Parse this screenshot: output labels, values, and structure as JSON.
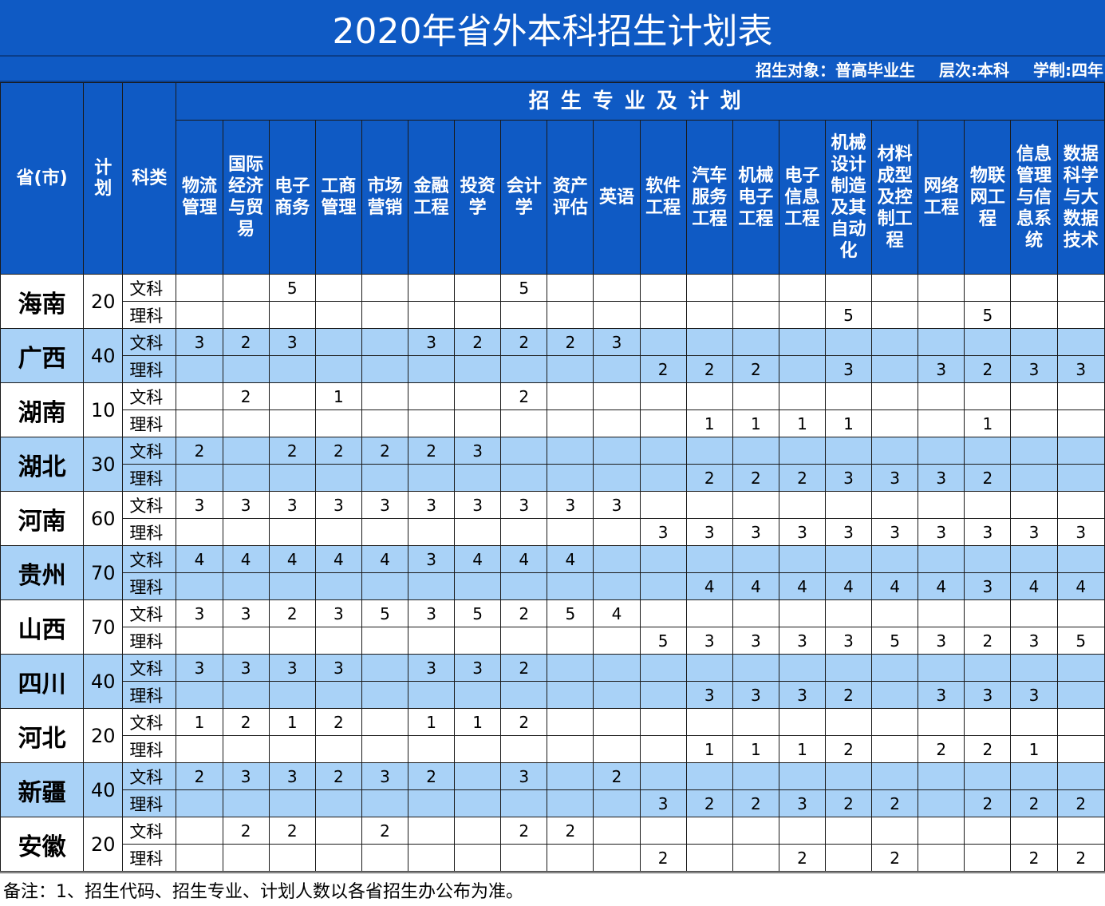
{
  "title": "2020年省外本科招生计划表",
  "info": {
    "target": "招生对象：普高毕业生",
    "level": "层次:本科",
    "duration": "学制:四年"
  },
  "headers": {
    "province": "省(市)",
    "plan": "计\n划",
    "type": "科类",
    "plan_group": "招生专业及计划",
    "majors": [
      "物流\n管理",
      "国际\n经济\n与贸\n易",
      "电子\n商务",
      "工商\n管理",
      "市场\n营销",
      "金融\n工程",
      "投资\n学",
      "会计\n学",
      "资产\n评估",
      "英语",
      "软件\n工程",
      "汽车\n服务\n工程",
      "机械\n电子\n工程",
      "电子\n信息\n工程",
      "机械\n设计\n制造\n及其\n自动\n化",
      "材料\n成型\n及控\n制工\n程",
      "网络\n工程",
      "物联\n网工\n程",
      "信息\n管理\n与信\n息系\n统",
      "数据\n科学\n与大\n数据\n技术"
    ]
  },
  "rows": [
    {
      "province": "海南",
      "plan": "20",
      "wen": {
        "type": "文科",
        "values": [
          "",
          "",
          "5",
          "",
          "",
          "",
          "",
          "5",
          "",
          "",
          "",
          "",
          "",
          "",
          "",
          "",
          "",
          "",
          "",
          ""
        ]
      },
      "li": {
        "type": "理科",
        "values": [
          "",
          "",
          "",
          "",
          "",
          "",
          "",
          "",
          "",
          "",
          "",
          "",
          "",
          "",
          "5",
          "",
          "",
          "5",
          "",
          ""
        ]
      }
    },
    {
      "province": "广西",
      "plan": "40",
      "wen": {
        "type": "文科",
        "values": [
          "3",
          "2",
          "3",
          "",
          "",
          "3",
          "2",
          "2",
          "2",
          "3",
          "",
          "",
          "",
          "",
          "",
          "",
          "",
          "",
          "",
          ""
        ]
      },
      "li": {
        "type": "理科",
        "values": [
          "",
          "",
          "",
          "",
          "",
          "",
          "",
          "",
          "",
          "",
          "2",
          "2",
          "2",
          "",
          "3",
          "",
          "3",
          "2",
          "3",
          "3"
        ]
      }
    },
    {
      "province": "湖南",
      "plan": "10",
      "wen": {
        "type": "文科",
        "values": [
          "",
          "2",
          "",
          "1",
          "",
          "",
          "",
          "2",
          "",
          "",
          "",
          "",
          "",
          "",
          "",
          "",
          "",
          "",
          "",
          ""
        ]
      },
      "li": {
        "type": "理科",
        "values": [
          "",
          "",
          "",
          "",
          "",
          "",
          "",
          "",
          "",
          "",
          "",
          "1",
          "1",
          "1",
          "1",
          "",
          "",
          "1",
          "",
          ""
        ]
      }
    },
    {
      "province": "湖北",
      "plan": "30",
      "wen": {
        "type": "文科",
        "values": [
          "2",
          "",
          "2",
          "2",
          "2",
          "2",
          "3",
          "",
          "",
          "",
          "",
          "",
          "",
          "",
          "",
          "",
          "",
          "",
          "",
          ""
        ]
      },
      "li": {
        "type": "理科",
        "values": [
          "",
          "",
          "",
          "",
          "",
          "",
          "",
          "",
          "",
          "",
          "",
          "2",
          "2",
          "2",
          "3",
          "3",
          "3",
          "2",
          "",
          ""
        ]
      }
    },
    {
      "province": "河南",
      "plan": "60",
      "wen": {
        "type": "文科",
        "values": [
          "3",
          "3",
          "3",
          "3",
          "3",
          "3",
          "3",
          "3",
          "3",
          "3",
          "",
          "",
          "",
          "",
          "",
          "",
          "",
          "",
          "",
          ""
        ]
      },
      "li": {
        "type": "理科",
        "values": [
          "",
          "",
          "",
          "",
          "",
          "",
          "",
          "",
          "",
          "",
          "3",
          "3",
          "3",
          "3",
          "3",
          "3",
          "3",
          "3",
          "3",
          "3"
        ]
      }
    },
    {
      "province": "贵州",
      "plan": "70",
      "wen": {
        "type": "文科",
        "values": [
          "4",
          "4",
          "4",
          "4",
          "4",
          "3",
          "4",
          "4",
          "4",
          "",
          "",
          "",
          "",
          "",
          "",
          "",
          "",
          "",
          "",
          ""
        ]
      },
      "li": {
        "type": "理科",
        "values": [
          "",
          "",
          "",
          "",
          "",
          "",
          "",
          "",
          "",
          "",
          "",
          "4",
          "4",
          "4",
          "4",
          "4",
          "4",
          "3",
          "4",
          "4"
        ]
      }
    },
    {
      "province": "山西",
      "plan": "70",
      "wen": {
        "type": "文科",
        "values": [
          "3",
          "3",
          "2",
          "3",
          "5",
          "3",
          "5",
          "2",
          "5",
          "4",
          "",
          "",
          "",
          "",
          "",
          "",
          "",
          "",
          "",
          ""
        ]
      },
      "li": {
        "type": "理科",
        "values": [
          "",
          "",
          "",
          "",
          "",
          "",
          "",
          "",
          "",
          "",
          "5",
          "3",
          "3",
          "3",
          "3",
          "5",
          "3",
          "2",
          "3",
          "5"
        ]
      }
    },
    {
      "province": "四川",
      "plan": "40",
      "wen": {
        "type": "文科",
        "values": [
          "3",
          "3",
          "3",
          "3",
          "",
          "3",
          "3",
          "2",
          "",
          "",
          "",
          "",
          "",
          "",
          "",
          "",
          "",
          "",
          "",
          ""
        ]
      },
      "li": {
        "type": "理科",
        "values": [
          "",
          "",
          "",
          "",
          "",
          "",
          "",
          "",
          "",
          "",
          "",
          "3",
          "3",
          "3",
          "2",
          "",
          "3",
          "3",
          "3",
          ""
        ]
      }
    },
    {
      "province": "河北",
      "plan": "20",
      "wen": {
        "type": "文科",
        "values": [
          "1",
          "2",
          "1",
          "2",
          "",
          "1",
          "1",
          "2",
          "",
          "",
          "",
          "",
          "",
          "",
          "",
          "",
          "",
          "",
          "",
          ""
        ]
      },
      "li": {
        "type": "理科",
        "values": [
          "",
          "",
          "",
          "",
          "",
          "",
          "",
          "",
          "",
          "",
          "",
          "1",
          "1",
          "1",
          "2",
          "",
          "2",
          "2",
          "1",
          ""
        ]
      }
    },
    {
      "province": "新疆",
      "plan": "40",
      "wen": {
        "type": "文科",
        "values": [
          "2",
          "3",
          "3",
          "2",
          "3",
          "2",
          "",
          "3",
          "",
          "2",
          "",
          "",
          "",
          "",
          "",
          "",
          "",
          "",
          "",
          ""
        ]
      },
      "li": {
        "type": "理科",
        "values": [
          "",
          "",
          "",
          "",
          "",
          "",
          "",
          "",
          "",
          "",
          "3",
          "2",
          "2",
          "3",
          "2",
          "2",
          "",
          "2",
          "2",
          "2"
        ]
      }
    },
    {
      "province": "安徽",
      "plan": "20",
      "wen": {
        "type": "文科",
        "values": [
          "",
          "2",
          "2",
          "",
          "2",
          "",
          "",
          "2",
          "2",
          "",
          "",
          "",
          "",
          "",
          "",
          "",
          "",
          "",
          "",
          ""
        ]
      },
      "li": {
        "type": "理科",
        "values": [
          "",
          "",
          "",
          "",
          "",
          "",
          "",
          "",
          "",
          "",
          "2",
          "",
          "",
          "2",
          "",
          "2",
          "",
          "",
          "2",
          "2"
        ]
      }
    }
  ],
  "footer": "备注：1、招生代码、招生专业、计划人数以各省招生办公布为准。",
  "colors": {
    "header_blue": "#0f5ac4",
    "band_blue": "#a9d2f7",
    "band_white": "#ffffff"
  }
}
